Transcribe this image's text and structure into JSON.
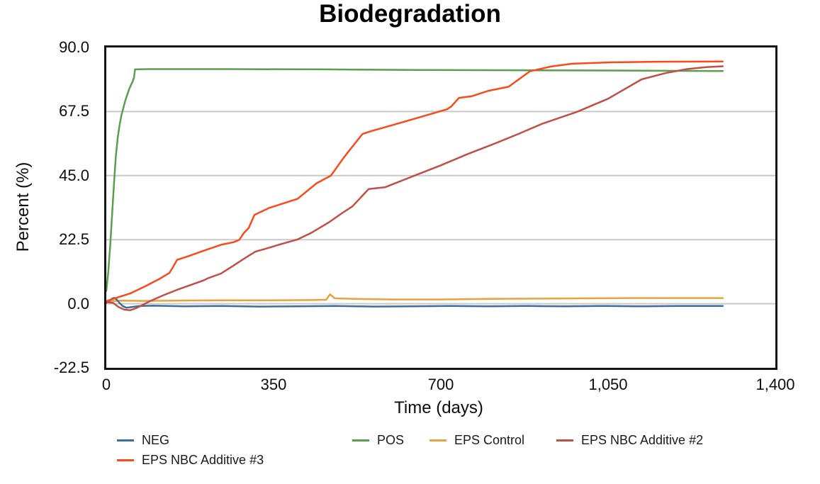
{
  "title": "Biodegradation",
  "chart_data": {
    "type": "line",
    "title": "Biodegradation",
    "xlabel": "Time (days)",
    "ylabel": "Percent (%)",
    "xlim": [
      0,
      1400
    ],
    "ylim": [
      -22.5,
      90
    ],
    "grid": "horizontal-gray",
    "legend_position": "bottom",
    "x_ticks": [
      {
        "v": 0,
        "label": "0"
      },
      {
        "v": 350,
        "label": "350"
      },
      {
        "v": 700,
        "label": "700"
      },
      {
        "v": 1050,
        "label": "1,050"
      },
      {
        "v": 1400,
        "label": "1,400"
      }
    ],
    "y_ticks": [
      {
        "v": 90,
        "label": "90.0"
      },
      {
        "v": 67.5,
        "label": "67.5"
      },
      {
        "v": 45,
        "label": "45.0"
      },
      {
        "v": 22.5,
        "label": "22.5"
      },
      {
        "v": 0,
        "label": "0.0"
      },
      {
        "v": -22.5,
        "label": "-22.5"
      }
    ],
    "series": [
      {
        "name": "NEG",
        "color": "#3e6d9c",
        "points": [
          [
            0,
            0.3
          ],
          [
            6,
            1.0
          ],
          [
            12,
            1.8
          ],
          [
            17,
            2.1
          ],
          [
            22,
            1.4
          ],
          [
            28,
            0.2
          ],
          [
            34,
            -0.8
          ],
          [
            42,
            -1.4
          ],
          [
            52,
            -1.2
          ],
          [
            70,
            -0.8
          ],
          [
            100,
            -0.7
          ],
          [
            160,
            -0.9
          ],
          [
            240,
            -0.8
          ],
          [
            320,
            -1.0
          ],
          [
            400,
            -0.9
          ],
          [
            480,
            -0.8
          ],
          [
            560,
            -1.0
          ],
          [
            640,
            -0.9
          ],
          [
            720,
            -0.8
          ],
          [
            800,
            -0.9
          ],
          [
            880,
            -0.8
          ],
          [
            960,
            -0.9
          ],
          [
            1040,
            -0.8
          ],
          [
            1120,
            -0.9
          ],
          [
            1200,
            -0.8
          ],
          [
            1290,
            -0.8
          ]
        ]
      },
      {
        "name": "POS",
        "color": "#58a04c",
        "points": [
          [
            0,
            4.5
          ],
          [
            4,
            11
          ],
          [
            8,
            20
          ],
          [
            12,
            31
          ],
          [
            16,
            42
          ],
          [
            20,
            52
          ],
          [
            24,
            58.5
          ],
          [
            28,
            63
          ],
          [
            32,
            66.5
          ],
          [
            36,
            69
          ],
          [
            40,
            71.5
          ],
          [
            44,
            73.5
          ],
          [
            48,
            75.5
          ],
          [
            52,
            77
          ],
          [
            55,
            78
          ],
          [
            58,
            79.5
          ],
          [
            60,
            82.3
          ],
          [
            90,
            82.4
          ],
          [
            250,
            82.4
          ],
          [
            450,
            82.3
          ],
          [
            650,
            82.1
          ],
          [
            850,
            82.0
          ],
          [
            1050,
            81.9
          ],
          [
            1290,
            81.7
          ]
        ]
      },
      {
        "name": "EPS Control",
        "color": "#e8a33e",
        "points": [
          [
            0,
            0.4
          ],
          [
            12,
            0.9
          ],
          [
            30,
            1.1
          ],
          [
            80,
            1.0
          ],
          [
            150,
            1.1
          ],
          [
            250,
            1.2
          ],
          [
            350,
            1.2
          ],
          [
            430,
            1.3
          ],
          [
            460,
            1.4
          ],
          [
            468,
            3.3
          ],
          [
            478,
            1.9
          ],
          [
            520,
            1.7
          ],
          [
            600,
            1.5
          ],
          [
            700,
            1.5
          ],
          [
            800,
            1.7
          ],
          [
            900,
            1.8
          ],
          [
            1000,
            1.9
          ],
          [
            1100,
            2.0
          ],
          [
            1200,
            2.0
          ],
          [
            1290,
            2.0
          ]
        ]
      },
      {
        "name": "EPS NBC Additive #2",
        "color": "#c04f4a",
        "points": [
          [
            0,
            0.6
          ],
          [
            14,
            0.3
          ],
          [
            26,
            -1.2
          ],
          [
            38,
            -2.1
          ],
          [
            50,
            -2.3
          ],
          [
            62,
            -1.6
          ],
          [
            75,
            -0.5
          ],
          [
            90,
            0.8
          ],
          [
            120,
            3.0
          ],
          [
            150,
            5.0
          ],
          [
            180,
            6.8
          ],
          [
            205,
            8.3
          ],
          [
            212,
            8.9
          ],
          [
            240,
            10.6
          ],
          [
            266,
            13.4
          ],
          [
            290,
            16.0
          ],
          [
            312,
            18.3
          ],
          [
            335,
            19.4
          ],
          [
            365,
            20.9
          ],
          [
            399,
            22.5
          ],
          [
            430,
            25.0
          ],
          [
            465,
            28.5
          ],
          [
            495,
            32.0
          ],
          [
            515,
            34.2
          ],
          [
            549,
            40.3
          ],
          [
            583,
            40.9
          ],
          [
            645,
            45.0
          ],
          [
            700,
            48.6
          ],
          [
            755,
            52.5
          ],
          [
            812,
            56.2
          ],
          [
            862,
            59.6
          ],
          [
            912,
            63.2
          ],
          [
            985,
            67.4
          ],
          [
            1050,
            72.0
          ],
          [
            1120,
            78.8
          ],
          [
            1170,
            81.0
          ],
          [
            1215,
            82.4
          ],
          [
            1255,
            83.1
          ],
          [
            1290,
            83.4
          ]
        ]
      },
      {
        "name": "EPS NBC Additive #3",
        "color": "#fa4a1c",
        "points": [
          [
            0,
            0.9
          ],
          [
            20,
            2.0
          ],
          [
            50,
            3.6
          ],
          [
            80,
            6.0
          ],
          [
            110,
            8.6
          ],
          [
            132,
            10.8
          ],
          [
            140,
            13.0
          ],
          [
            148,
            15.4
          ],
          [
            170,
            16.6
          ],
          [
            200,
            18.4
          ],
          [
            240,
            20.7
          ],
          [
            266,
            21.6
          ],
          [
            278,
            22.4
          ],
          [
            288,
            24.9
          ],
          [
            298,
            26.6
          ],
          [
            310,
            31.2
          ],
          [
            340,
            33.6
          ],
          [
            388,
            36.2
          ],
          [
            400,
            36.8
          ],
          [
            440,
            42.3
          ],
          [
            470,
            45.0
          ],
          [
            485,
            48.5
          ],
          [
            500,
            52.0
          ],
          [
            536,
            59.6
          ],
          [
            556,
            60.7
          ],
          [
            600,
            62.8
          ],
          [
            650,
            65.2
          ],
          [
            713,
            68.3
          ],
          [
            722,
            69.3
          ],
          [
            738,
            72.3
          ],
          [
            765,
            72.9
          ],
          [
            800,
            74.8
          ],
          [
            842,
            76.2
          ],
          [
            886,
            81.6
          ],
          [
            930,
            83.3
          ],
          [
            975,
            84.3
          ],
          [
            1060,
            84.8
          ],
          [
            1150,
            85.0
          ],
          [
            1290,
            85.1
          ]
        ]
      }
    ],
    "legend_rows": [
      [
        0,
        1,
        2,
        3
      ],
      [
        4
      ]
    ]
  }
}
